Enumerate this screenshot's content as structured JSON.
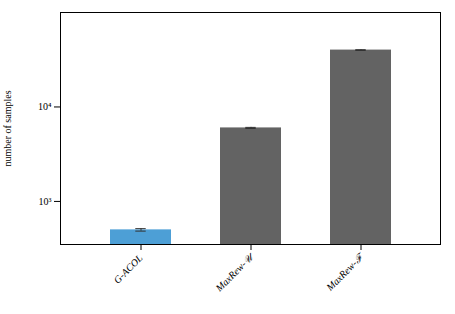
{
  "chart_data": {
    "type": "bar",
    "categories": [
      "G-ACOL",
      "MaxRew-𝒰",
      "MaxRew-ℱ"
    ],
    "values": [
      500,
      6000,
      40000
    ],
    "errors": [
      15,
      80,
      400
    ],
    "colors": [
      "#4d9fd6",
      "#636363",
      "#636363"
    ],
    "ylabel": "number of samples",
    "log": "y",
    "ylim": [
      350,
      100000
    ],
    "yticks": [
      {
        "value": 1000,
        "label": "10³"
      },
      {
        "value": 10000,
        "label": "10⁴"
      }
    ],
    "grid": false
  }
}
